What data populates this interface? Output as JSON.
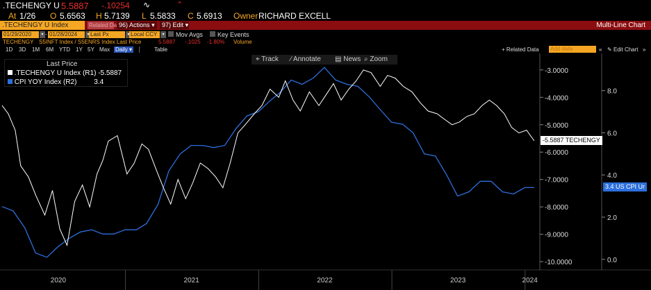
{
  "header": {
    "ticker": ".TECHENGY U",
    "last": "5.5887",
    "change": "-.10254",
    "at_label": "At",
    "at_date": "1/26",
    "open_label": "O",
    "open": "5.6563",
    "high_label": "H",
    "high": "5.7139",
    "low_label": "L",
    "low": "5.5833",
    "close_label": "C",
    "close": "5.6913",
    "owner_label": "Owner",
    "owner": "RICHARD EXCELL"
  },
  "toolbar": {
    "security": ".TECHENGY U Index",
    "related_label": "Related Data",
    "actions_num": "96)",
    "actions_label": "Actions",
    "edit_num": "97)",
    "edit_label": "Edit",
    "chart_title": "Multi-Line Chart"
  },
  "settings": {
    "start_date": "01/29/2020",
    "end_date": "01/28/2024",
    "field": "Last Px",
    "currency": "Local CCY",
    "mov_avgs": "Mov Avgs",
    "key_events": "Key Events"
  },
  "legend_row": {
    "ticker": "TECHENGY",
    "desc": "S5INFT Index / S5ENRS Index Last Price",
    "last": "5.5887",
    "chg": "-.1025",
    "pct": "-1.80%",
    "volume": "Volume"
  },
  "periods": [
    "1D",
    "3D",
    "1M",
    "6M",
    "YTD",
    "1Y",
    "5Y",
    "Max"
  ],
  "period_select": "Daily",
  "table_label": "Table",
  "related_data": "+ Related Data",
  "add_data_placeholder": "Add data",
  "edit_chart": "Edit Chart",
  "chart_tools": {
    "track": "Track",
    "annotate": "Annotate",
    "news": "News",
    "zoom": "Zoom"
  },
  "legend": {
    "title": "Last Price",
    "items": [
      {
        "label": ".TECHENGY U Index  (R1)",
        "value": "-5.5887",
        "color": "#ffffff"
      },
      {
        "label": "CPI YOY Index  (R2)",
        "value": "3.4",
        "color": "#2d6fdc"
      }
    ]
  },
  "axis_r1": {
    "ticks": [
      "-3.0000",
      "-4.0000",
      "-5.0000",
      "-6.0000",
      "-7.0000",
      "-8.0000",
      "-9.0000",
      "-10.0000"
    ],
    "tag": "-5.5887 TECHENGY"
  },
  "axis_r2": {
    "ticks": [
      "8.0",
      "6.0",
      "4.0",
      "2.0",
      "0.0"
    ],
    "tag": "3.4 US CPI Ur"
  },
  "x_axis": {
    "labels": [
      "2020",
      "2021",
      "2022",
      "2023",
      "2024"
    ]
  },
  "colors": {
    "toolbar_red": "#8b0d10",
    "orange": "#f5a623",
    "cpi_blue": "#2d6fdc",
    "price_white": "#ffffff",
    "negative": "#e8302a"
  },
  "chart_data": {
    "type": "line",
    "x_range": [
      "2020-01-29",
      "2024-01-28"
    ],
    "series": [
      {
        "name": ".TECHENGY U Index  (R1)",
        "axis": "R1",
        "x": [
          "2020-01-29",
          "2020-02-15",
          "2020-03-05",
          "2020-03-20",
          "2020-04-10",
          "2020-05-01",
          "2020-05-25",
          "2020-06-15",
          "2020-07-05",
          "2020-07-25",
          "2020-08-15",
          "2020-09-05",
          "2020-09-25",
          "2020-10-15",
          "2020-10-31",
          "2020-11-15",
          "2020-12-10",
          "2021-01-05",
          "2021-01-25",
          "2021-02-15",
          "2021-03-05",
          "2021-03-25",
          "2021-04-15",
          "2021-05-05",
          "2021-05-25",
          "2021-06-15",
          "2021-07-05",
          "2021-07-25",
          "2021-08-15",
          "2021-09-05",
          "2021-09-25",
          "2021-10-15",
          "2021-11-05",
          "2021-11-25",
          "2021-12-20",
          "2022-01-10",
          "2022-02-01",
          "2022-02-25",
          "2022-03-15",
          "2022-04-05",
          "2022-04-25",
          "2022-05-20",
          "2022-06-15",
          "2022-07-05",
          "2022-07-25",
          "2022-08-15",
          "2022-09-05",
          "2022-09-25",
          "2022-10-15",
          "2022-11-05",
          "2022-11-30",
          "2022-12-20",
          "2023-01-10",
          "2023-02-01",
          "2023-02-25",
          "2023-03-20",
          "2023-04-10",
          "2023-05-05",
          "2023-05-25",
          "2023-06-15",
          "2023-07-05",
          "2023-07-25",
          "2023-08-15",
          "2023-09-05",
          "2023-09-25",
          "2023-10-15",
          "2023-11-05",
          "2023-11-25",
          "2023-12-15",
          "2024-01-05",
          "2024-01-26"
        ],
        "y": [
          -4.3,
          -4.6,
          -5.2,
          -6.5,
          -6.9,
          -7.6,
          -8.3,
          -7.4,
          -8.8,
          -9.4,
          -7.8,
          -7.2,
          -8.0,
          -6.8,
          -6.3,
          -5.6,
          -5.4,
          -6.8,
          -6.4,
          -5.7,
          -5.9,
          -6.6,
          -7.3,
          -7.9,
          -7.0,
          -7.7,
          -7.1,
          -6.4,
          -6.6,
          -6.9,
          -7.3,
          -6.4,
          -5.3,
          -5.0,
          -4.6,
          -4.3,
          -3.7,
          -4.0,
          -3.4,
          -4.1,
          -4.5,
          -3.8,
          -4.3,
          -3.9,
          -3.5,
          -4.1,
          -3.7,
          -3.4,
          -3.0,
          -3.1,
          -3.6,
          -3.2,
          -3.3,
          -3.6,
          -3.8,
          -4.2,
          -4.5,
          -4.6,
          -4.8,
          -5.0,
          -4.9,
          -4.7,
          -4.6,
          -4.3,
          -4.1,
          -4.3,
          -4.6,
          -5.1,
          -5.3,
          -5.2,
          -5.59
        ]
      },
      {
        "name": "CPI YOY Index  (R2)",
        "axis": "R2",
        "x": [
          "2020-01-29",
          "2020-02-28",
          "2020-03-31",
          "2020-04-30",
          "2020-05-31",
          "2020-06-30",
          "2020-07-31",
          "2020-08-31",
          "2020-09-30",
          "2020-10-31",
          "2020-11-30",
          "2020-12-31",
          "2021-01-31",
          "2021-02-28",
          "2021-03-31",
          "2021-04-30",
          "2021-05-31",
          "2021-06-30",
          "2021-07-31",
          "2021-08-31",
          "2021-09-30",
          "2021-10-31",
          "2021-11-30",
          "2021-12-31",
          "2022-01-31",
          "2022-02-28",
          "2022-03-31",
          "2022-04-30",
          "2022-05-31",
          "2022-06-30",
          "2022-07-31",
          "2022-08-31",
          "2022-09-30",
          "2022-10-31",
          "2022-11-30",
          "2022-12-31",
          "2023-01-31",
          "2023-02-28",
          "2023-03-31",
          "2023-04-30",
          "2023-05-31",
          "2023-06-30",
          "2023-07-31",
          "2023-08-31",
          "2023-09-30",
          "2023-10-31",
          "2023-11-30",
          "2023-12-31",
          "2024-01-26"
        ],
        "y": [
          2.5,
          2.3,
          1.5,
          0.3,
          0.1,
          0.6,
          1.0,
          1.3,
          1.4,
          1.2,
          1.2,
          1.4,
          1.4,
          1.7,
          2.6,
          4.2,
          5.0,
          5.4,
          5.4,
          5.3,
          5.4,
          6.2,
          6.8,
          7.0,
          7.5,
          7.9,
          8.5,
          8.3,
          8.6,
          9.1,
          8.5,
          8.3,
          8.2,
          7.7,
          7.1,
          6.5,
          6.4,
          6.0,
          5.0,
          4.9,
          4.0,
          3.0,
          3.2,
          3.7,
          3.7,
          3.2,
          3.1,
          3.4,
          3.4
        ]
      }
    ],
    "r1_range": [
      -10.3,
      -2.6
    ],
    "r2_range": [
      -0.5,
      9.5
    ],
    "r1_ticks": [
      -3,
      -4,
      -5,
      -6,
      -7,
      -8,
      -9,
      -10
    ],
    "r2_ticks": [
      8,
      6,
      4,
      2,
      0
    ],
    "grid": false,
    "legend_position": "top-left"
  }
}
